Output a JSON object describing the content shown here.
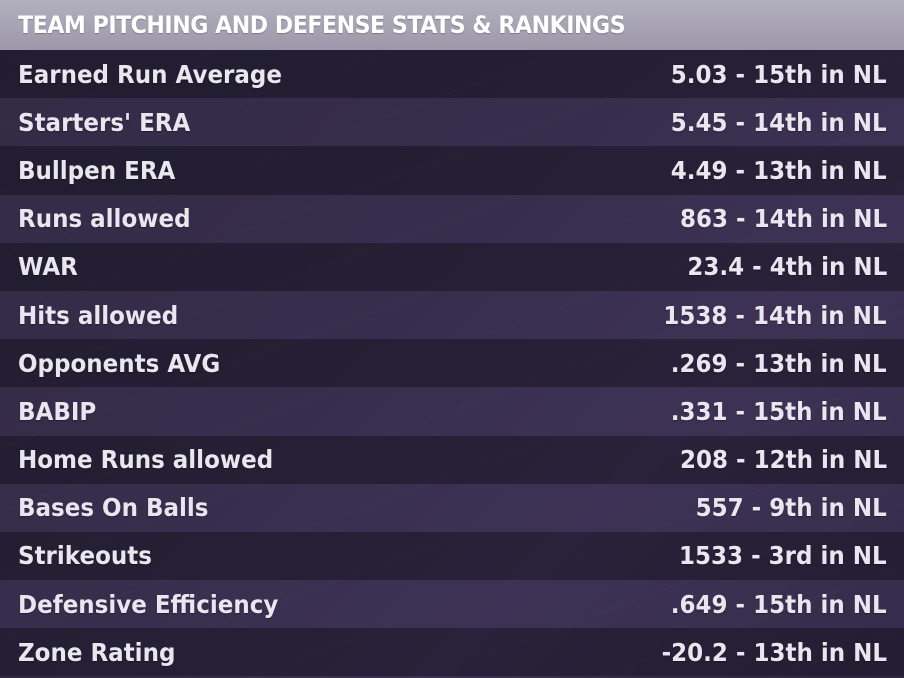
{
  "header": {
    "title": "TEAM PITCHING AND DEFENSE STATS & RANKINGS"
  },
  "rows": [
    {
      "label": "Earned Run Average",
      "value": "5.03 - 15th in NL"
    },
    {
      "label": "Starters' ERA",
      "value": "5.45 - 14th in NL"
    },
    {
      "label": "Bullpen ERA",
      "value": "4.49 - 13th in NL"
    },
    {
      "label": "Runs allowed",
      "value": "863 - 14th in NL"
    },
    {
      "label": "WAR",
      "value": "23.4 - 4th in NL"
    },
    {
      "label": "Hits allowed",
      "value": "1538 - 14th in NL"
    },
    {
      "label": "Opponents AVG",
      "value": ".269 - 13th in NL"
    },
    {
      "label": "BABIP",
      "value": ".331 - 15th in NL"
    },
    {
      "label": "Home Runs allowed",
      "value": "208 - 12th in NL"
    },
    {
      "label": "Bases On Balls",
      "value": "557 - 9th in NL"
    },
    {
      "label": "Strikeouts",
      "value": "1533 - 3rd in NL"
    },
    {
      "label": "Defensive Efficiency",
      "value": ".649 - 15th in NL"
    },
    {
      "label": "Zone Rating",
      "value": "-20.2 - 13th in NL"
    }
  ]
}
